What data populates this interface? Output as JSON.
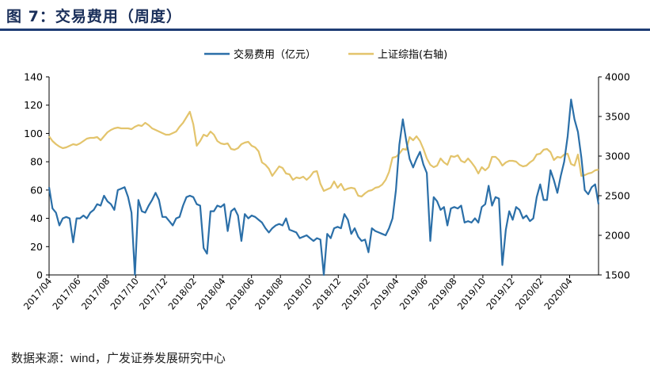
{
  "figure": {
    "title": "图 7：交易费用（周度）",
    "source_prefix": "数据来源：",
    "source_text": "wind，广发证券发展研究中心"
  },
  "chart_data": {
    "type": "line",
    "title": "图 7：交易费用（周度）",
    "xlabel": "",
    "ylabel_left": "交易费用（亿元）",
    "ylabel_right": "上证综指(右轴)",
    "ylim_left": [
      0,
      140
    ],
    "yticks_left": [
      0,
      20,
      40,
      60,
      80,
      100,
      120,
      140
    ],
    "ylim_right": [
      1500,
      4000
    ],
    "yticks_right": [
      1500,
      2000,
      2500,
      3000,
      3500,
      4000
    ],
    "x_ticks": [
      "2017/04",
      "2017/06",
      "2017/08",
      "2017/10",
      "2017/12",
      "2018/02",
      "2018/04",
      "2018/06",
      "2018/08",
      "2018/10",
      "2018/12",
      "2019/02",
      "2019/04",
      "2019/06",
      "2019/08",
      "2019/10",
      "2019/12",
      "2020/02",
      "2020/04"
    ],
    "legend_position": "top-center",
    "grid": false,
    "series": [
      {
        "name": "交易费用（亿元）",
        "axis": "left",
        "color": "#2b6fa8",
        "values": [
          62,
          47,
          44,
          35,
          40,
          41,
          40,
          23,
          40,
          40,
          42,
          40,
          44,
          46,
          50,
          49,
          56,
          52,
          50,
          46,
          60,
          61,
          62,
          55,
          44,
          0,
          53,
          45,
          44,
          49,
          53,
          58,
          53,
          41,
          41,
          38,
          35,
          40,
          41,
          49,
          55,
          56,
          55,
          50,
          49,
          19,
          15,
          45,
          45,
          49,
          48,
          50,
          31,
          45,
          47,
          42,
          24,
          43,
          40,
          42,
          41,
          39,
          37,
          33,
          30,
          33,
          35,
          36,
          35,
          40,
          32,
          31,
          30,
          26,
          27,
          28,
          26,
          24,
          26,
          25,
          0,
          29,
          26,
          33,
          34,
          33,
          43,
          39,
          29,
          33,
          27,
          24,
          25,
          16,
          33,
          31,
          30,
          29,
          28,
          33,
          40,
          60,
          92,
          110,
          95,
          82,
          76,
          82,
          87,
          78,
          72,
          24,
          55,
          52,
          46,
          48,
          35,
          47,
          48,
          47,
          49,
          37,
          38,
          37,
          40,
          37,
          48,
          50,
          63,
          49,
          55,
          54,
          7,
          32,
          45,
          39,
          48,
          46,
          40,
          42,
          38,
          40,
          55,
          64,
          53,
          53,
          74,
          67,
          58,
          70,
          80,
          98,
          124,
          110,
          101,
          83,
          60,
          57,
          62,
          64,
          50
        ]
      },
      {
        "name": "上证综指(右轴)",
        "axis": "right",
        "color": "#e3c46c",
        "values": [
          3250,
          3190,
          3150,
          3120,
          3100,
          3110,
          3130,
          3150,
          3140,
          3160,
          3190,
          3220,
          3230,
          3230,
          3240,
          3200,
          3250,
          3300,
          3330,
          3350,
          3360,
          3350,
          3350,
          3350,
          3340,
          3370,
          3390,
          3380,
          3420,
          3390,
          3350,
          3330,
          3310,
          3290,
          3270,
          3270,
          3290,
          3310,
          3370,
          3420,
          3490,
          3560,
          3400,
          3130,
          3190,
          3270,
          3250,
          3310,
          3270,
          3190,
          3160,
          3150,
          3160,
          3090,
          3080,
          3100,
          3150,
          3170,
          3180,
          3130,
          3110,
          3060,
          2920,
          2890,
          2840,
          2750,
          2810,
          2870,
          2850,
          2780,
          2770,
          2700,
          2730,
          2720,
          2740,
          2700,
          2740,
          2800,
          2810,
          2650,
          2560,
          2580,
          2600,
          2680,
          2600,
          2650,
          2570,
          2590,
          2600,
          2590,
          2500,
          2490,
          2530,
          2560,
          2570,
          2600,
          2610,
          2640,
          2700,
          2800,
          2980,
          2990,
          3030,
          3090,
          3080,
          3240,
          3200,
          3250,
          3190,
          3090,
          2970,
          2890,
          2860,
          2880,
          2970,
          2920,
          2890,
          3000,
          2990,
          3010,
          2940,
          2920,
          2970,
          2920,
          2860,
          2780,
          2860,
          2820,
          2860,
          2990,
          2990,
          2950,
          2880,
          2920,
          2940,
          2940,
          2930,
          2890,
          2870,
          2880,
          2920,
          2950,
          3020,
          3030,
          3080,
          3090,
          3050,
          2950,
          2990,
          2980,
          3020,
          3030,
          2900,
          2880,
          3020,
          2750,
          2760,
          2780,
          2790,
          2820,
          2830
        ]
      }
    ]
  }
}
